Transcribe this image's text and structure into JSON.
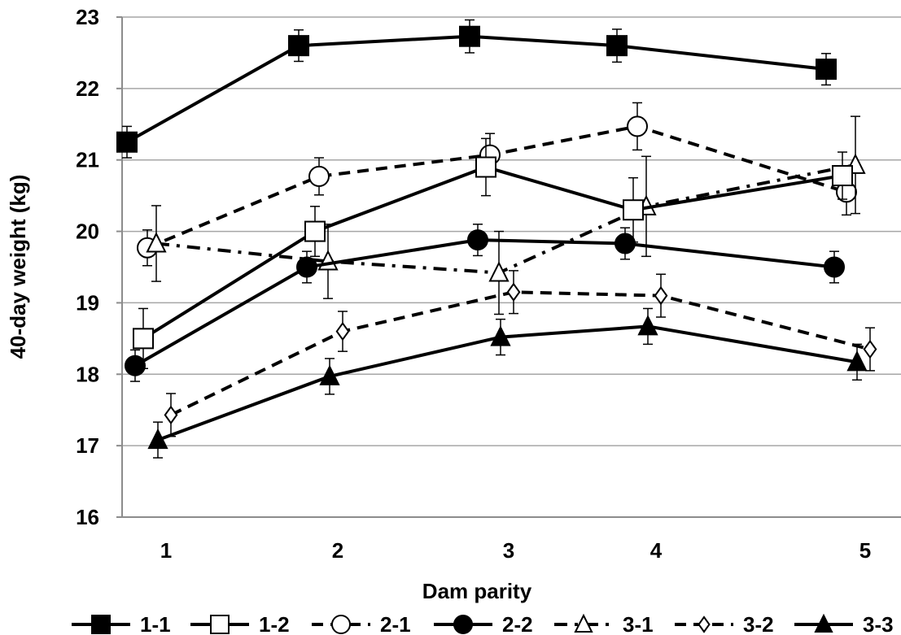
{
  "chart_data": {
    "type": "line",
    "title": "",
    "xlabel": "Dam parity",
    "ylabel": "40-day weight (kg)",
    "xticks": [
      "1",
      "2",
      "3",
      "4",
      "5"
    ],
    "ylim": [
      16,
      23
    ],
    "yticks": [
      "16",
      "17",
      "18",
      "19",
      "20",
      "21",
      "22",
      "23"
    ],
    "grid": "horizontal",
    "legend_position": "bottom",
    "series": [
      {
        "name": "1-1",
        "marker": "square-filled",
        "line": "solid",
        "x": [
          1,
          2,
          3,
          4,
          5
        ],
        "y": [
          21.25,
          22.6,
          22.73,
          22.6,
          22.27
        ],
        "err": [
          0.22,
          0.22,
          0.23,
          0.23,
          0.22
        ]
      },
      {
        "name": "1-2",
        "marker": "square-open",
        "line": "solid",
        "x": [
          1,
          2,
          3,
          4,
          5
        ],
        "y": [
          18.5,
          20.0,
          20.9,
          20.3,
          20.78
        ],
        "err": [
          0.42,
          0.35,
          0.4,
          0.45,
          0.33
        ]
      },
      {
        "name": "2-1",
        "marker": "circle-open",
        "line": "dash",
        "x": [
          1,
          2,
          3,
          4,
          5
        ],
        "y": [
          19.77,
          20.77,
          21.07,
          21.47,
          20.55
        ],
        "err": [
          0.25,
          0.26,
          0.3,
          0.33,
          0.32
        ]
      },
      {
        "name": "2-2",
        "marker": "circle-filled",
        "line": "solid",
        "x": [
          1,
          2,
          3,
          4,
          5
        ],
        "y": [
          18.12,
          19.5,
          19.88,
          19.83,
          19.5
        ],
        "err": [
          0.22,
          0.22,
          0.22,
          0.22,
          0.22
        ]
      },
      {
        "name": "3-1",
        "marker": "triangle-open",
        "line": "dash-dot",
        "x": [
          1,
          2,
          3,
          4,
          5
        ],
        "y": [
          19.83,
          19.58,
          19.42,
          20.35,
          20.93
        ],
        "err": [
          0.53,
          0.52,
          0.58,
          0.7,
          0.68
        ]
      },
      {
        "name": "3-2",
        "marker": "diamond-open",
        "line": "dash",
        "x": [
          1,
          2,
          3,
          4,
          5
        ],
        "y": [
          17.43,
          18.6,
          19.15,
          19.1,
          18.35
        ],
        "err": [
          0.3,
          0.28,
          0.3,
          0.3,
          0.3
        ]
      },
      {
        "name": "3-3",
        "marker": "triangle-filled",
        "line": "solid",
        "x": [
          1,
          2,
          3,
          4,
          5
        ],
        "y": [
          17.08,
          17.97,
          18.52,
          18.67,
          18.17
        ],
        "err": [
          0.25,
          0.25,
          0.25,
          0.25,
          0.25
        ]
      }
    ]
  }
}
